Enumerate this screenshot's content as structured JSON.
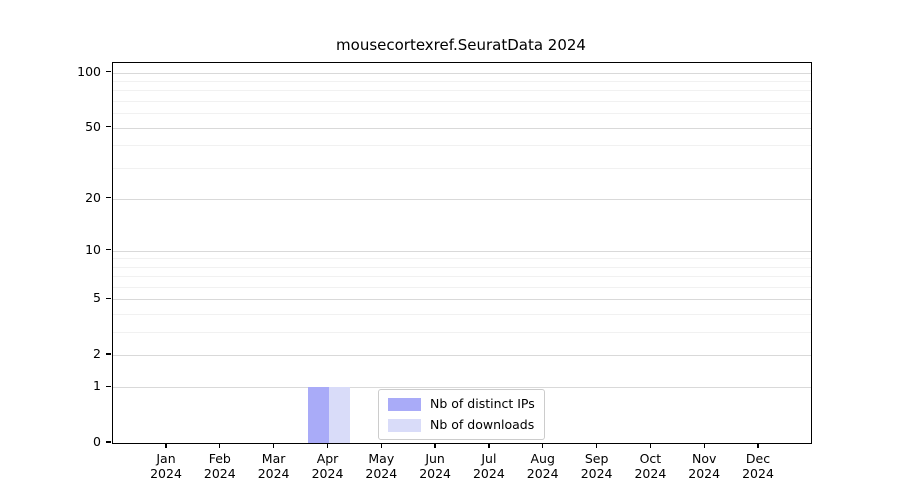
{
  "figure": {
    "background": "#ffffff"
  },
  "chart_data": {
    "type": "bar",
    "title": "mousecortexref.SeuratData 2024",
    "categories": [
      "Jan",
      "Feb",
      "Mar",
      "Apr",
      "May",
      "Jun",
      "Jul",
      "Aug",
      "Sep",
      "Oct",
      "Nov",
      "Dec"
    ],
    "x_year_label": "2024",
    "series": [
      {
        "name": "Nb of distinct IPs",
        "color": "#a9abf8",
        "values": [
          0,
          0,
          0,
          1,
          0,
          0,
          0,
          0,
          0,
          0,
          0,
          0
        ]
      },
      {
        "name": "Nb of downloads",
        "color": "#d9dcf9",
        "values": [
          0,
          0,
          0,
          1,
          0,
          0,
          0,
          0,
          0,
          0,
          0,
          0
        ]
      }
    ],
    "y_axis": {
      "scale": "log1p",
      "major_ticks": [
        0,
        1,
        2,
        5,
        10,
        20,
        50,
        100
      ],
      "minor_gridlines": [
        3,
        4,
        6,
        7,
        8,
        9,
        30,
        40,
        60,
        70,
        80,
        90
      ],
      "ylim": [
        0,
        113
      ]
    },
    "xlabel": "",
    "ylabel": "",
    "grid": "horizontal",
    "legend_position": "inside-bottom-center"
  },
  "style": {
    "axis_color": "#000000",
    "text_color": "#000000",
    "major_grid_color": "#d9d9d9",
    "minor_grid_color": "#f1f1f1",
    "legend_border_color": "#cccccc"
  }
}
